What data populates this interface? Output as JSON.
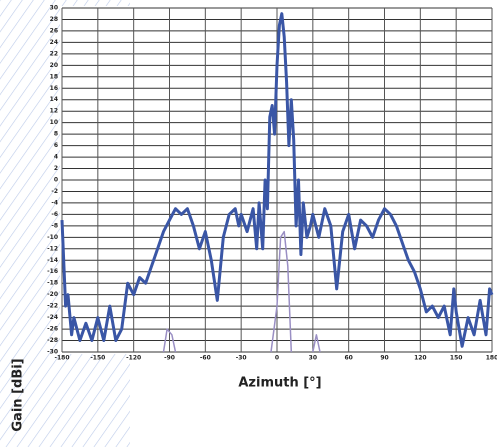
{
  "chart_data": {
    "type": "line",
    "x_label": "Azimuth [°]",
    "y_label": "Gain [dBi]",
    "xlim": [
      -180,
      180
    ],
    "xticks": [
      -180,
      -150,
      -120,
      -90,
      -60,
      -30,
      0,
      30,
      60,
      90,
      120,
      150,
      180
    ],
    "ylim": [
      -30,
      30
    ],
    "yticks": [
      -30,
      -28,
      -26,
      -24,
      -22,
      -20,
      -18,
      -16,
      -14,
      -12,
      -10,
      -8,
      -6,
      -4,
      -2,
      0,
      2,
      4,
      6,
      8,
      10,
      12,
      14,
      16,
      18,
      20,
      22,
      24,
      26,
      28,
      30
    ],
    "grid": true,
    "series": [
      {
        "color": "#3a56a6",
        "x": [
          -180,
          -177,
          -175,
          -172,
          -170,
          -165,
          -160,
          -155,
          -150,
          -145,
          -140,
          -135,
          -130,
          -125,
          -120,
          -115,
          -110,
          -105,
          -100,
          -95,
          -90,
          -85,
          -80,
          -75,
          -70,
          -65,
          -60,
          -55,
          -50,
          -45,
          -40,
          -35,
          -32,
          -30,
          -25,
          -20,
          -17,
          -15,
          -12,
          -10,
          -8,
          -6,
          -4,
          -2,
          0,
          2,
          4,
          6,
          8,
          10,
          12,
          14,
          16,
          18,
          20,
          22,
          25,
          28,
          30,
          35,
          40,
          45,
          50,
          55,
          60,
          65,
          70,
          75,
          80,
          85,
          90,
          95,
          100,
          105,
          110,
          115,
          120,
          125,
          130,
          135,
          140,
          145,
          148,
          150,
          155,
          160,
          165,
          170,
          175,
          178,
          180
        ],
        "values": [
          -7,
          -22,
          -20,
          -27,
          -24,
          -28,
          -25,
          -28,
          -24,
          -28,
          -22,
          -28,
          -26,
          -18,
          -20,
          -17,
          -18,
          -15,
          -12,
          -9,
          -7,
          -5,
          -6,
          -5,
          -8,
          -12,
          -9,
          -14,
          -21,
          -10,
          -6,
          -5,
          -8,
          -6,
          -9,
          -5,
          -12,
          -4,
          -12,
          0,
          -5,
          11,
          13,
          8,
          20,
          27,
          29,
          25,
          17,
          6,
          14,
          7,
          -8,
          0,
          -13,
          -4,
          -10,
          -8,
          -6,
          -10,
          -5,
          -8,
          -19,
          -9,
          -6,
          -12,
          -7,
          -8,
          -10,
          -7,
          -5,
          -6,
          -8,
          -11,
          -14,
          -16,
          -19,
          -23,
          -22,
          -24,
          -22,
          -27,
          -19,
          -23,
          -29,
          -24,
          -27,
          -21,
          -27,
          -19,
          -20
        ]
      },
      {
        "color": "#9a8fc4",
        "x": [
          -95,
          -92,
          -88,
          -85,
          -80,
          -5,
          0,
          3,
          6,
          9,
          12,
          15,
          30,
          33,
          36
        ],
        "values": [
          -30,
          -26,
          -27,
          -30,
          null,
          -30,
          -22,
          -10,
          -9,
          -15,
          -30,
          null,
          -30,
          -27,
          -30
        ]
      }
    ]
  }
}
